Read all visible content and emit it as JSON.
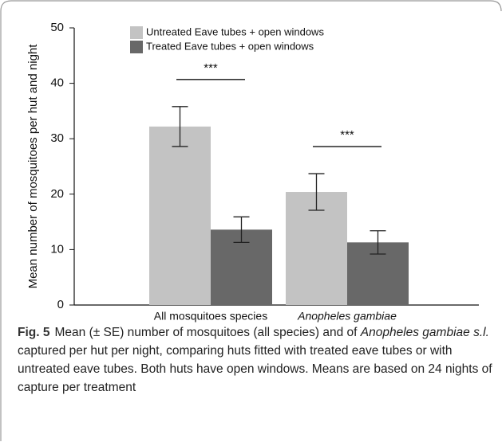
{
  "chart_data": {
    "type": "bar",
    "y_label": "Mean number of mosquitoes per hut and night",
    "categories": [
      "All mosquitoes species",
      "Anopheles gambiae"
    ],
    "category_style": [
      "normal",
      "italic"
    ],
    "series": [
      {
        "name": "Untreated Eave tubes + open windows",
        "color": "#c3c3c3",
        "values": [
          32.2,
          20.4
        ],
        "errors": [
          3.6,
          3.3
        ]
      },
      {
        "name": "Treated Eave tubes + open windows",
        "color": "#686868",
        "values": [
          13.6,
          11.3
        ],
        "errors": [
          2.3,
          2.1
        ]
      }
    ],
    "significance": [
      "***",
      "***"
    ],
    "ylim": [
      0,
      50
    ],
    "yticks": [
      0,
      10,
      20,
      30,
      40,
      50
    ]
  },
  "caption": {
    "label": "Fig. 5",
    "parts": [
      {
        "text": "Mean (± SE) number of mosquitoes (all species) and of ",
        "style": "normal"
      },
      {
        "text": "Anopheles gambiae s.l.",
        "style": "italic"
      },
      {
        "text": " captured per hut per night, comparing huts fitted with treated eave tubes or with untreated eave tubes. Both huts have open windows. Means are based on 24 nights of capture per treatment",
        "style": "normal"
      }
    ]
  }
}
